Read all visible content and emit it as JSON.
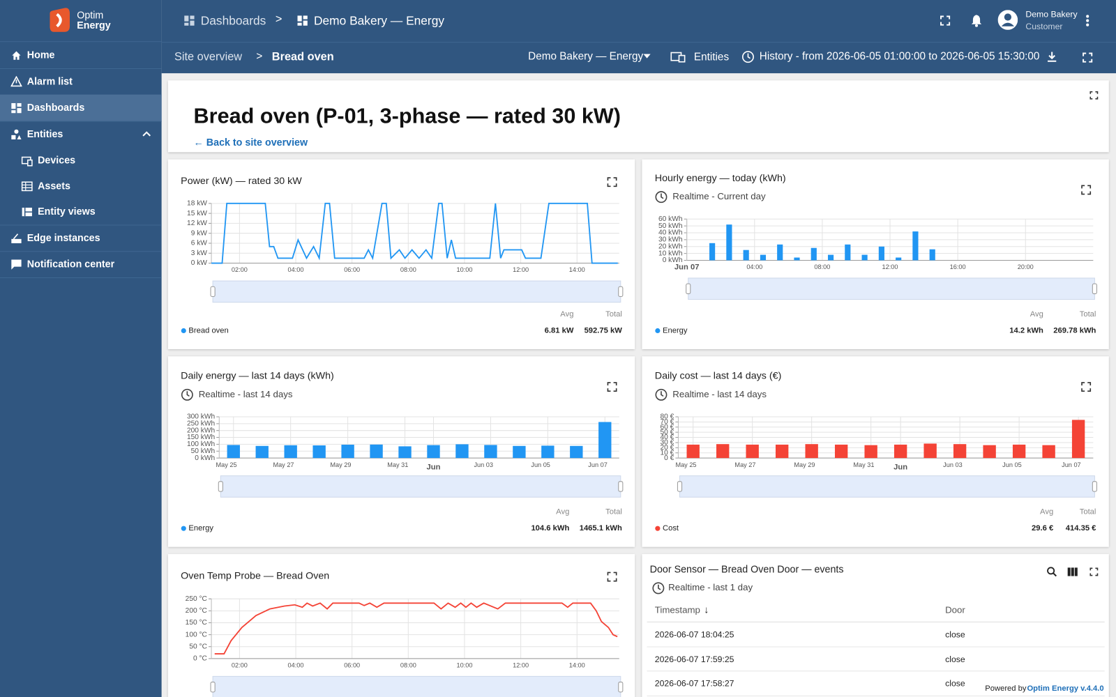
{
  "sidebar": {
    "logo": [
      "Optim",
      "Energy"
    ],
    "menu": [
      "Home",
      "Alarm list",
      "Dashboards",
      "Entities",
      "Devices",
      "Assets",
      "Entity views",
      "Edge instances",
      "Notification center"
    ]
  },
  "topbar": {
    "breadcrumb": [
      "Dashboards",
      ">",
      "Demo Bakery — Energy"
    ],
    "user": {
      "name": "Demo Bakery",
      "role": "Customer"
    }
  },
  "toolbar": {
    "breadcrumb": [
      "Site overview",
      ">",
      "Bread oven"
    ],
    "dashboard_select": "Demo Bakery — Energy",
    "entities": "Entities",
    "history": "History - from 2026-06-05 01:00:00 to 2026-06-05 15:30:00"
  },
  "header": {
    "title": "Bread oven (P-01, 3-phase — rated 30 kW)",
    "link": "← Back to site overview"
  },
  "chart_data": [
    {
      "type": "line",
      "title": "Power (kW) — rated 30 kW",
      "x": [
        "01:00",
        "01:23",
        "01:33",
        "02:55",
        "03:04",
        "03:13",
        "03:22",
        "03:53",
        "04:05",
        "04:23",
        "04:38",
        "04:50",
        "05:03",
        "05:12",
        "05:23",
        "06:26",
        "06:35",
        "06:44",
        "07:04",
        "07:13",
        "07:23",
        "07:41",
        "07:53",
        "08:08",
        "08:23",
        "08:38",
        "08:50",
        "09:05",
        "09:12",
        "09:23",
        "09:32",
        "09:41",
        "10:54",
        "11:06",
        "11:17",
        "11:24",
        "12:02",
        "12:10",
        "12:43",
        "13:00",
        "14:22",
        "14:32",
        "15:27"
      ],
      "series": [
        {
          "name": "Bread oven",
          "color": "#2196f3",
          "values": [
            0,
            0,
            18,
            18,
            5,
            5,
            1.5,
            1.5,
            7,
            1.5,
            5,
            1.5,
            18,
            18,
            1.5,
            1.5,
            4,
            1.5,
            18,
            18,
            1.5,
            4,
            1.5,
            4,
            1.5,
            4,
            1.5,
            18,
            18,
            1.5,
            7,
            1.5,
            1.5,
            18,
            1.5,
            4,
            4,
            1.5,
            1.5,
            18,
            18,
            0,
            0
          ],
          "avg": "6.81 kW",
          "total": "592.75 kW"
        }
      ],
      "legend_stats": [
        "Avg",
        "Total"
      ],
      "xlim": [
        "01:00",
        "15:30"
      ],
      "xticks": [
        "02:00",
        "04:00",
        "06:00",
        "08:00",
        "10:00",
        "12:00",
        "14:00"
      ],
      "ylim": [
        0,
        18
      ],
      "yticks": [
        {
          "value": 0,
          "label": "0 kW"
        },
        {
          "value": 3,
          "label": "3 kW"
        },
        {
          "value": 6,
          "label": "6 kW"
        },
        {
          "value": 9,
          "label": "9 kW"
        },
        {
          "value": 12,
          "label": "12 kW"
        },
        {
          "value": 15,
          "label": "15 kW"
        },
        {
          "value": 18,
          "label": "18 kW"
        }
      ],
      "grid": true
    },
    {
      "type": "bar",
      "title": "Hourly energy — today (kWh)",
      "subtitle": "Realtime - Current day",
      "x": [
        "01:30",
        "02:30",
        "03:30",
        "04:30",
        "05:30",
        "06:30",
        "07:30",
        "08:30",
        "09:30",
        "10:30",
        "11:30",
        "12:30",
        "13:30",
        "14:30"
      ],
      "series": [
        {
          "name": "Energy",
          "color": "#2196f3",
          "values": [
            25,
            52,
            15,
            8,
            23,
            4,
            18,
            8,
            23,
            8,
            20,
            4,
            42,
            16
          ],
          "avg": "14.2 kWh",
          "total": "269.78 kWh"
        }
      ],
      "legend_stats": [
        "Avg",
        "Total"
      ],
      "xlim": [
        "00:00",
        "24:00"
      ],
      "xticks": [
        {
          "value": "00:00",
          "label": "Jun 07"
        },
        "04:00",
        "08:00",
        "12:00",
        "16:00",
        "20:00"
      ],
      "ylim": [
        0,
        60
      ],
      "yticks": [
        {
          "value": 0,
          "label": "0 kWh"
        },
        {
          "value": 10,
          "label": "10 kWh"
        },
        {
          "value": 20,
          "label": "20 kWh"
        },
        {
          "value": 30,
          "label": "30 kWh"
        },
        {
          "value": 40,
          "label": "40 kWh"
        },
        {
          "value": 50,
          "label": "50 kWh"
        },
        {
          "value": 60,
          "label": "60 kWh"
        }
      ],
      "grid": true
    },
    {
      "type": "bar",
      "title": "Daily energy — last 14 days (kWh)",
      "subtitle": "Realtime - last 14 days",
      "categories": [
        "May 25",
        null,
        "May 27",
        null,
        "May 29",
        null,
        "May 31",
        "Jun",
        null,
        "Jun 03",
        null,
        "Jun 05",
        null,
        "Jun 07"
      ],
      "series": [
        {
          "name": "Energy",
          "color": "#2196f3",
          "values": [
            95,
            88,
            93,
            92,
            97,
            98,
            85,
            94,
            100,
            95,
            88,
            90,
            88,
            262
          ],
          "avg": "104.6 kWh",
          "total": "1465.1 kWh"
        }
      ],
      "legend_stats": [
        "Avg",
        "Total"
      ],
      "ylim": [
        0,
        300
      ],
      "yticks": [
        {
          "value": 0,
          "label": "0 kWh"
        },
        {
          "value": 50,
          "label": "50 kWh"
        },
        {
          "value": 100,
          "label": "100 kWh"
        },
        {
          "value": 150,
          "label": "150 kWh"
        },
        {
          "value": 200,
          "label": "200 kWh"
        },
        {
          "value": 250,
          "label": "250 kWh"
        },
        {
          "value": 300,
          "label": "300 kWh"
        }
      ],
      "grid": true
    },
    {
      "type": "bar",
      "title": "Daily cost — last 14 days (€)",
      "subtitle": "Realtime - last 14 days",
      "categories": [
        "May 25",
        null,
        "May 27",
        null,
        "May 29",
        null,
        "May 31",
        "Jun",
        null,
        "Jun 03",
        null,
        "Jun 05",
        null,
        "Jun 07"
      ],
      "series": [
        {
          "name": "Cost",
          "color": "#f44336",
          "values": [
            26,
            27,
            26,
            26,
            27,
            26,
            25,
            26,
            28,
            27,
            25,
            26,
            25,
            74
          ],
          "avg": "29.6 €",
          "total": "414.35 €"
        }
      ],
      "legend_stats": [
        "Avg",
        "Total"
      ],
      "ylim": [
        0,
        80
      ],
      "yticks": [
        {
          "value": 0,
          "label": "0 €"
        },
        {
          "value": 10,
          "label": "10 €"
        },
        {
          "value": 20,
          "label": "20 €"
        },
        {
          "value": 30,
          "label": "30 €"
        },
        {
          "value": 40,
          "label": "40 €"
        },
        {
          "value": 50,
          "label": "50 €"
        },
        {
          "value": 60,
          "label": "60 €"
        },
        {
          "value": 70,
          "label": "70 €"
        },
        {
          "value": 80,
          "label": "80 €"
        }
      ],
      "grid": true
    },
    {
      "type": "line",
      "title": "Oven Temp Probe — Bread Oven",
      "x": [
        "01:07",
        "01:27",
        "01:42",
        "02:05",
        "02:35",
        "03:05",
        "03:36",
        "03:58",
        "04:14",
        "04:24",
        "04:36",
        "04:52",
        "05:07",
        "05:19",
        "06:15",
        "06:26",
        "06:38",
        "06:53",
        "07:08",
        "08:55",
        "09:10",
        "09:25",
        "09:40",
        "09:52",
        "10:03",
        "10:14",
        "10:26",
        "10:41",
        "11:11",
        "11:27",
        "13:28",
        "13:40",
        "13:51",
        "14:29",
        "14:41",
        "14:52",
        "15:07",
        "15:17",
        "15:26"
      ],
      "series": [
        {
          "color": "#f44336",
          "values": [
            20,
            20,
            75,
            130,
            180,
            208,
            220,
            225,
            215,
            232,
            220,
            232,
            208,
            232,
            232,
            222,
            232,
            215,
            232,
            232,
            208,
            232,
            215,
            232,
            215,
            232,
            215,
            232,
            208,
            232,
            232,
            215,
            232,
            232,
            200,
            155,
            130,
            100,
            92
          ]
        }
      ],
      "xlim": [
        "01:00",
        "15:30"
      ],
      "xticks": [
        "02:00",
        "04:00",
        "06:00",
        "08:00",
        "10:00",
        "12:00",
        "14:00"
      ],
      "ylim": [
        0,
        250
      ],
      "yticks": [
        {
          "value": 0,
          "label": "0 °C"
        },
        {
          "value": 50,
          "label": "50 °C"
        },
        {
          "value": 100,
          "label": "100 °C"
        },
        {
          "value": 150,
          "label": "150 °C"
        },
        {
          "value": 200,
          "label": "200 °C"
        },
        {
          "value": 250,
          "label": "250 °C"
        }
      ],
      "grid": true
    }
  ],
  "table": {
    "title": "Door Sensor — Bread Oven Door — events",
    "subtitle": "Realtime - last 1 day",
    "columns": [
      "Timestamp",
      "Door"
    ],
    "rows": [
      [
        "2026-06-07 18:04:25",
        "close"
      ],
      [
        "2026-06-07 17:59:25",
        "close"
      ],
      [
        "2026-06-07 17:58:27",
        "close"
      ]
    ]
  },
  "footer": {
    "prefix": "Powered by",
    "brand": "Optim Energy v.4.4.0"
  }
}
